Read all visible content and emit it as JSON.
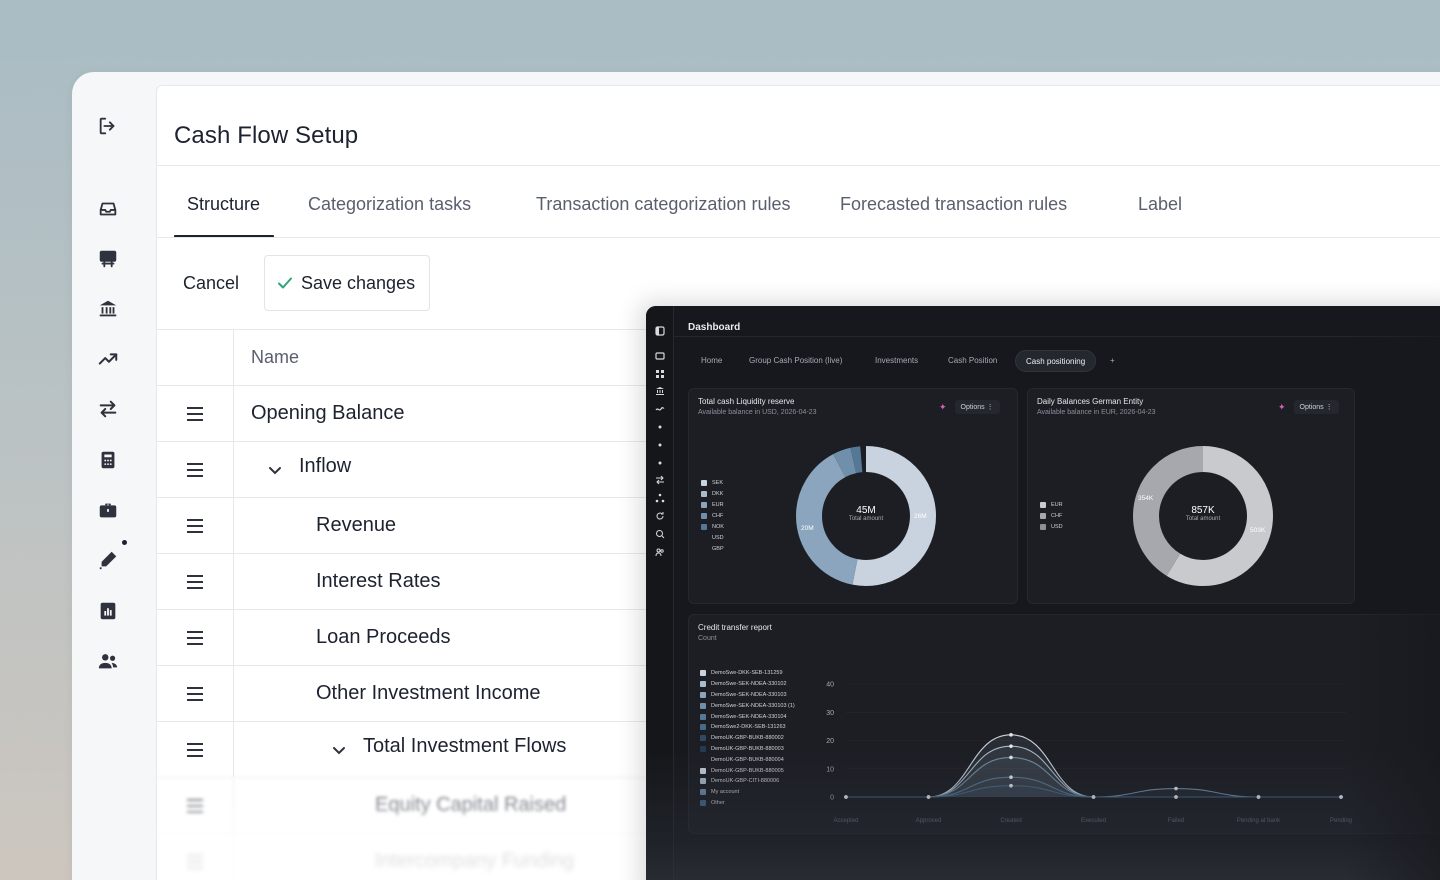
{
  "app": {
    "title": "Cash Flow Setup"
  },
  "tabs": [
    {
      "label": "Structure",
      "active": true
    },
    {
      "label": "Categorization tasks",
      "active": false
    },
    {
      "label": "Transaction categorization rules",
      "active": false
    },
    {
      "label": "Forecasted transaction rules",
      "active": false
    },
    {
      "label": "Label",
      "active": false
    }
  ],
  "toolbar": {
    "cancel_label": "Cancel",
    "save_label": "Save changes"
  },
  "table": {
    "header": "Name",
    "rows": [
      {
        "label": "Opening Balance",
        "level": 0,
        "expandable": false
      },
      {
        "label": "Inflow",
        "level": 0,
        "expandable": true
      },
      {
        "label": "Revenue",
        "level": 1,
        "expandable": false
      },
      {
        "label": "Interest Rates",
        "level": 1,
        "expandable": false
      },
      {
        "label": "Loan Proceeds",
        "level": 1,
        "expandable": false
      },
      {
        "label": "Other Investment Income",
        "level": 1,
        "expandable": false
      },
      {
        "label": "Total Investment Flows",
        "level": 1,
        "expandable": true
      },
      {
        "label": "Equity Capital Raised",
        "level": 2,
        "expandable": false
      },
      {
        "label": "Intercompany Funding",
        "level": 2,
        "expandable": false
      }
    ]
  },
  "sidebar": {
    "icons": [
      "logout-icon",
      "inbox-icon",
      "presentation-icon",
      "bank-icon",
      "trend-up-icon",
      "transfer-icon",
      "calculator-icon",
      "briefcase-icon",
      "pen-icon",
      "report-icon",
      "users-icon"
    ]
  },
  "dashboard": {
    "title": "Dashboard",
    "tabs": [
      {
        "label": "Home",
        "active": false
      },
      {
        "label": "Group Cash Position (live)",
        "active": false
      },
      {
        "label": "Investments",
        "active": false
      },
      {
        "label": "Cash Position",
        "active": false
      },
      {
        "label": "Cash positioning",
        "active": true
      },
      {
        "label": "+",
        "active": false
      }
    ],
    "options_label": "Options",
    "card1": {
      "title": "Total cash Liquidity reserve",
      "subtitle": "Available balance in USD, 2026-04-23",
      "center_value": "45M",
      "center_label": "Total amount",
      "label_a": "26M",
      "label_b": "20M",
      "legend": [
        {
          "label": "SEK",
          "color": "#c9d3df"
        },
        {
          "label": "DKK",
          "color": "#a9bccd"
        },
        {
          "label": "EUR",
          "color": "#8aa5bd"
        },
        {
          "label": "CHF",
          "color": "#6f8faa"
        },
        {
          "label": "NOK",
          "color": "#557896"
        },
        {
          "label": "USD",
          "color": "#1c1e24"
        },
        {
          "label": "GBP",
          "color": "#1c1e24"
        }
      ]
    },
    "card2": {
      "title": "Daily Balances German Entity",
      "subtitle": "Available balance in EUR, 2026-04-23",
      "center_value": "857K",
      "center_label": "Total amount",
      "label_a": "354K",
      "label_b": "503K",
      "legend": [
        {
          "label": "EUR",
          "color": "#c9cace"
        },
        {
          "label": "CHF",
          "color": "#a6a8ae"
        },
        {
          "label": "USD",
          "color": "#8c8f96"
        }
      ]
    },
    "card3": {
      "title": "Credit transfer report",
      "subtitle": "Count",
      "legend": [
        {
          "label": "DemoSwe-DKK-SEB-131259",
          "color": "#c9d3df"
        },
        {
          "label": "DemoSwe-SEK-NDEA-330102",
          "color": "#a9bccd"
        },
        {
          "label": "DemoSwe-SEK-NDEA-330103",
          "color": "#8aa5bd"
        },
        {
          "label": "DemoSwe-SEK-NDEA-330103 (1)",
          "color": "#6f8faa"
        },
        {
          "label": "DemoSwe-SEK-NDEA-330104",
          "color": "#557896"
        },
        {
          "label": "DemoSwe2-DKK-SEB-131263",
          "color": "#456a8a"
        },
        {
          "label": "DemoUK-GBP-BUKB-880002",
          "color": "#2f4a63"
        },
        {
          "label": "DemoUK-GBP-BUKB-880003",
          "color": "#263b50"
        },
        {
          "label": "DemoUK-GBP-BUKB-880004",
          "color": "#1c1e24"
        },
        {
          "label": "DemoUK-GBP-BUKB-880005",
          "color": "#c9d3df"
        },
        {
          "label": "DemoUK-GBP-CITI-880006",
          "color": "#a9bccd"
        },
        {
          "label": "My account",
          "color": "#6f8faa"
        },
        {
          "label": "Other",
          "color": "#456a8a"
        }
      ]
    },
    "chart_data": {
      "type": "area",
      "title": "Credit transfer report",
      "ylabel": "Count",
      "categories": [
        "Accepted",
        "Approved",
        "Created",
        "Executed",
        "Failed",
        "Pending at bank",
        "Pending"
      ],
      "ylim": [
        0,
        40
      ],
      "yticks": [
        0,
        10,
        20,
        30,
        40
      ],
      "series": [
        {
          "name": "DemoSwe-DKK-SEB-131259",
          "values": [
            0,
            0,
            22,
            0,
            0,
            0,
            0
          ]
        },
        {
          "name": "DemoSwe-SEK-NDEA-330102",
          "values": [
            0,
            0,
            18,
            0,
            0,
            0,
            0
          ]
        },
        {
          "name": "DemoSwe-SEK-NDEA-330103",
          "values": [
            0,
            0,
            14,
            0,
            3,
            0,
            0
          ]
        },
        {
          "name": "DemoSwe-SEK-NDEA-330103 (1)",
          "values": [
            0,
            0,
            7,
            0,
            0,
            0,
            0
          ]
        },
        {
          "name": "DemoSwe-SEK-NDEA-330104",
          "values": [
            0,
            0,
            4,
            0,
            0,
            0,
            0
          ]
        }
      ]
    }
  },
  "colors": {
    "accent_check": "#2fa37a",
    "text_primary": "#1d2230",
    "text_secondary": "#5a5f6e"
  }
}
